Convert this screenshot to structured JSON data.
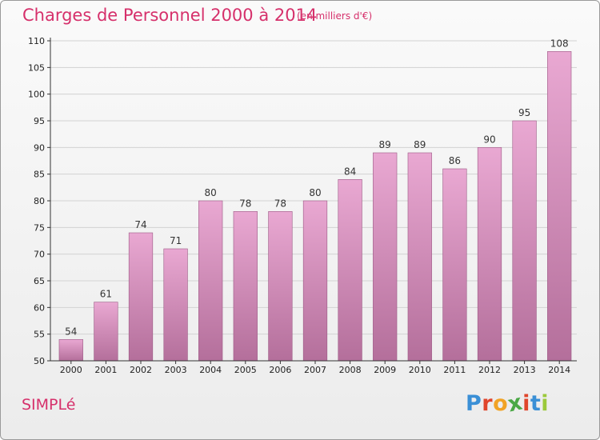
{
  "header": {
    "title": "Charges de Personnel 2000 à 2014",
    "subtitle": "(en milliers d'€)"
  },
  "footer": {
    "commune": "SIMPLé",
    "logo": "Proxiti"
  },
  "colors": {
    "text_accent": "#d6306b",
    "bar_top": "#e9a8d2",
    "bar_bottom": "#b46f9b",
    "bar_edge": "#9c5a85",
    "logo_letters": [
      "#3a8fd6",
      "#e0452b",
      "#f1a325",
      "#4aa845",
      "#e0452b",
      "#3a8fd6",
      "#9bc93a"
    ]
  },
  "chart_data": {
    "type": "bar",
    "title": "Charges de Personnel 2000 à 2014",
    "subtitle": "(en milliers d'€)",
    "categories": [
      "2000",
      "2001",
      "2002",
      "2003",
      "2004",
      "2005",
      "2006",
      "2007",
      "2008",
      "2009",
      "2010",
      "2011",
      "2012",
      "2013",
      "2014"
    ],
    "values": [
      54,
      61,
      74,
      71,
      80,
      78,
      78,
      80,
      84,
      89,
      89,
      86,
      90,
      95,
      108
    ],
    "ylim": [
      50,
      110
    ],
    "yticks": [
      50,
      55,
      60,
      65,
      70,
      75,
      80,
      85,
      90,
      95,
      100,
      105,
      110
    ],
    "grid": true,
    "data_labels": true
  }
}
